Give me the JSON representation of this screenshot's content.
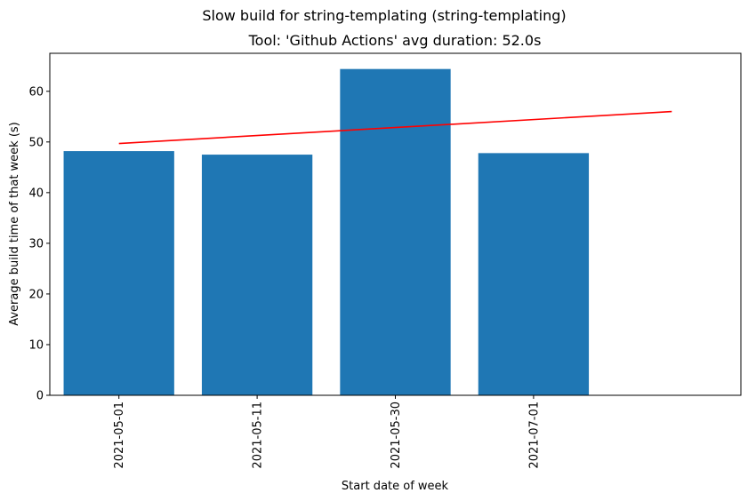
{
  "chart_data": {
    "type": "bar",
    "suptitle": "Slow build for string-templating (string-templating)",
    "title": "Tool: 'Github Actions' avg duration: 52.0s",
    "xlabel": "Start date of week",
    "ylabel": "Average build time of that week (s)",
    "categories": [
      "2021-05-01",
      "2021-05-11",
      "2021-05-30",
      "2021-07-01"
    ],
    "values": [
      48.2,
      47.5,
      64.4,
      47.8
    ],
    "bar_color": "#1f77b4",
    "trend_line": {
      "color": "#ff0000",
      "start": 49.7,
      "end": 56.0
    },
    "ylim": [
      0,
      67.5
    ],
    "yticks": [
      0,
      10,
      20,
      30,
      40,
      50,
      60
    ],
    "xlim": [
      -0.5,
      4.5
    ],
    "grid": false
  }
}
